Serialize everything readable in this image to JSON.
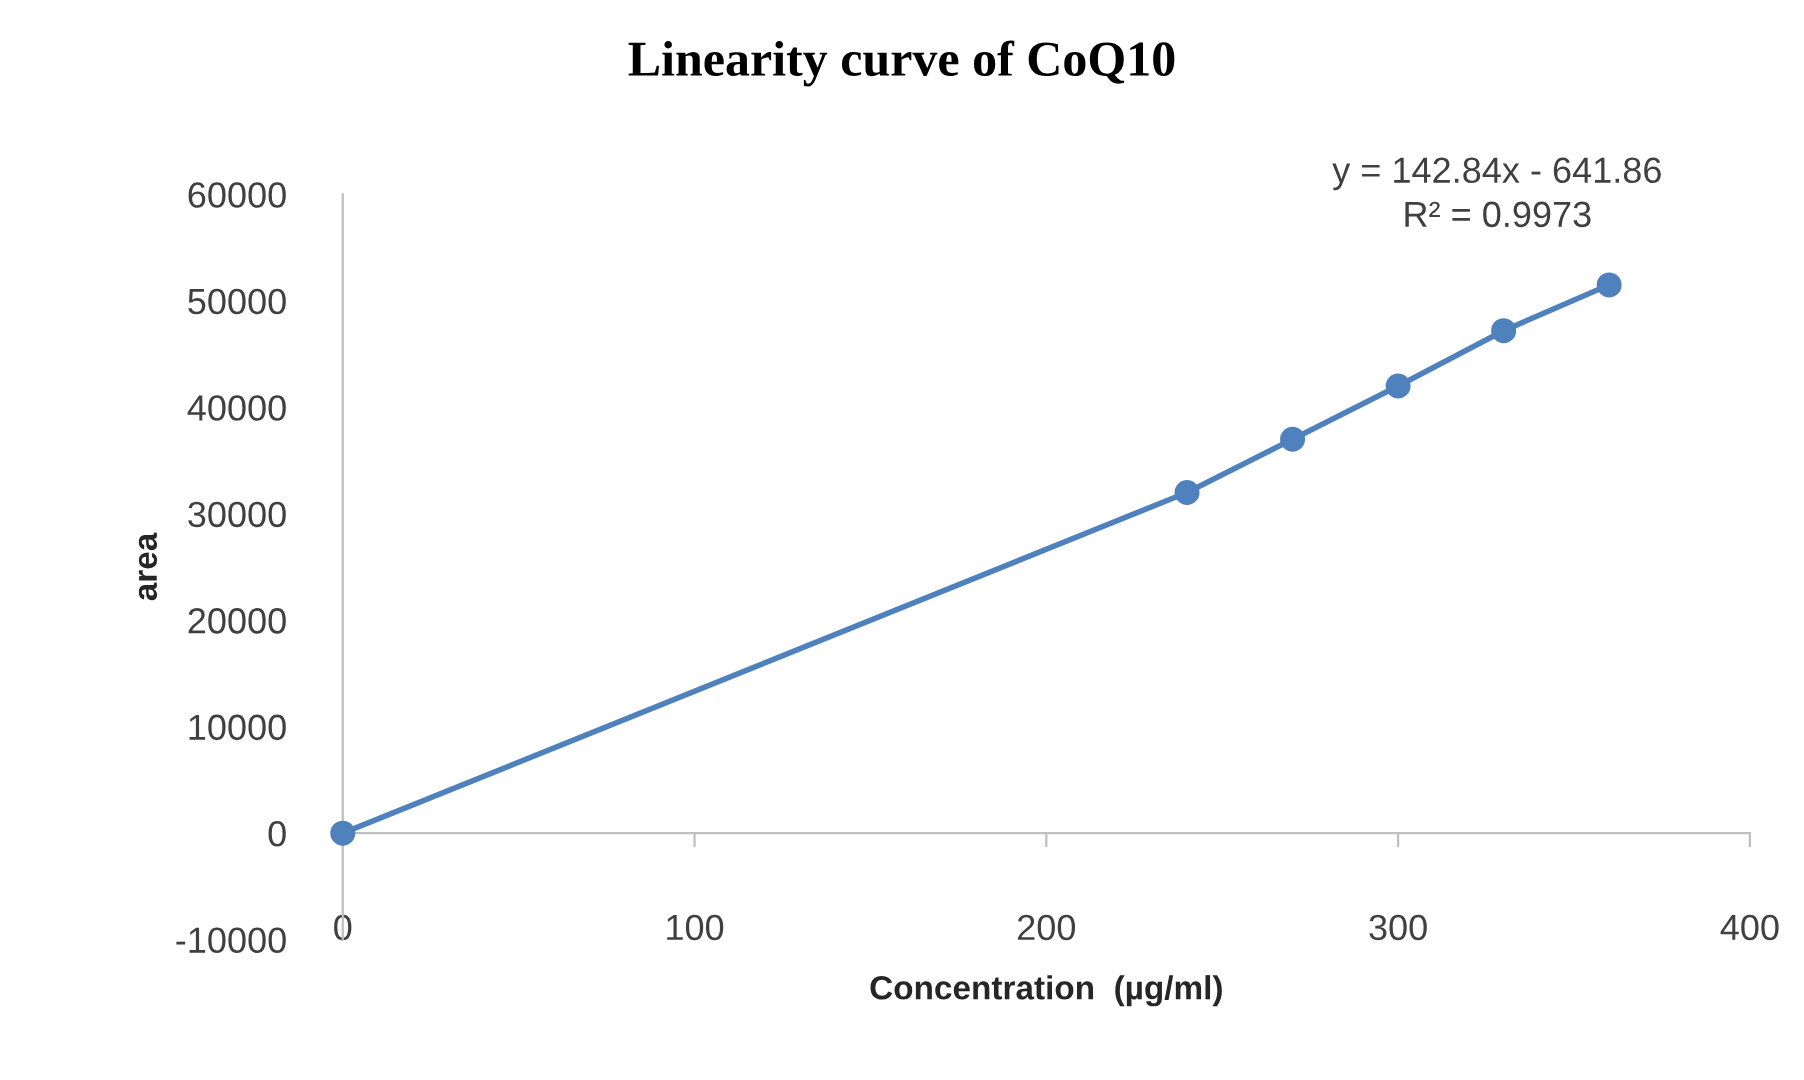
{
  "chart_data": {
    "type": "line",
    "title": "Linearity curve of CoQ10",
    "xlabel": "Concentration  (µg/ml)",
    "ylabel": "area",
    "series": [
      {
        "color": "#4f81bd",
        "x": [
          0,
          240,
          270,
          300,
          330,
          360
        ],
        "values": [
          0,
          32000,
          37000,
          42000,
          47200,
          51500
        ]
      }
    ],
    "marker": "circle",
    "line_style": "solid",
    "grid": false,
    "legend": false,
    "xlim": [
      0,
      400
    ],
    "xticks": [
      0,
      100,
      200,
      300,
      400
    ],
    "ylim": [
      -10000,
      60000
    ],
    "yticks": [
      -10000,
      0,
      10000,
      20000,
      30000,
      40000,
      50000,
      60000
    ],
    "annotations": [
      "y = 142.84x - 641.86\nR² = 0.9973"
    ]
  }
}
